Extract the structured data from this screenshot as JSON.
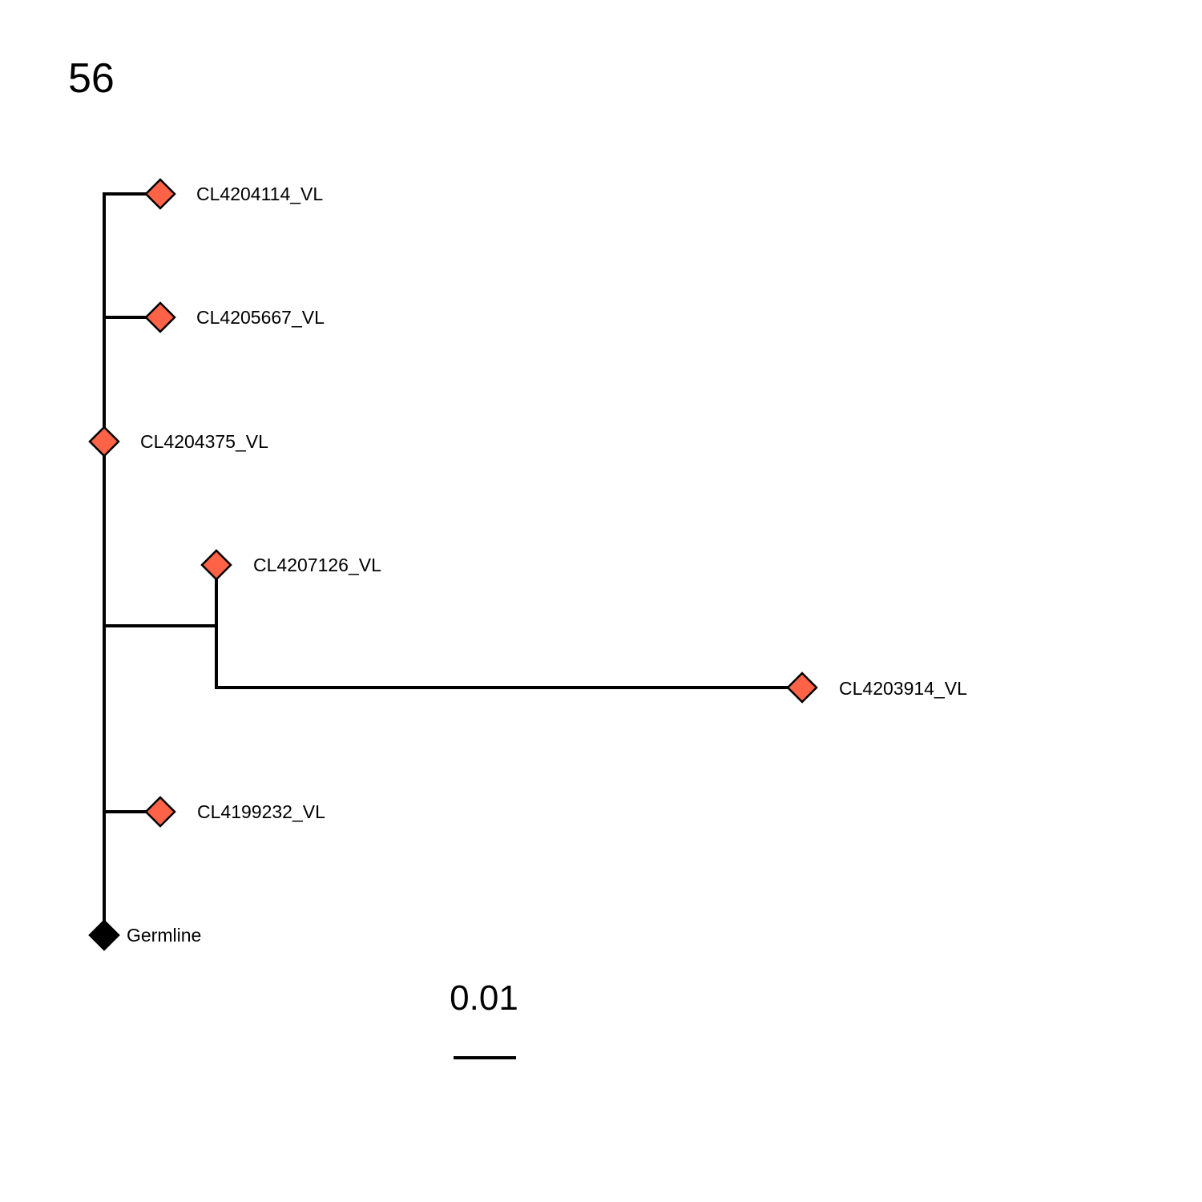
{
  "panel_number": "56",
  "colors": {
    "line": "#000000",
    "node": "#ff6347",
    "germline": "#000000"
  },
  "scale_bar": {
    "label": "0.01",
    "length": 0.01
  },
  "root": {
    "name": "Germline",
    "label": "Germline"
  },
  "tips": [
    {
      "name": "CL4204114_VL",
      "label": "CL4204114_VL"
    },
    {
      "name": "CL4205667_VL",
      "label": "CL4205667_VL"
    },
    {
      "name": "CL4204375_VL",
      "label": "CL4204375_VL"
    },
    {
      "name": "CL4207126_VL",
      "label": "CL4207126_VL"
    },
    {
      "name": "CL4203914_VL",
      "label": "CL4203914_VL"
    },
    {
      "name": "CL4199232_VL",
      "label": "CL4199232_VL"
    }
  ]
}
